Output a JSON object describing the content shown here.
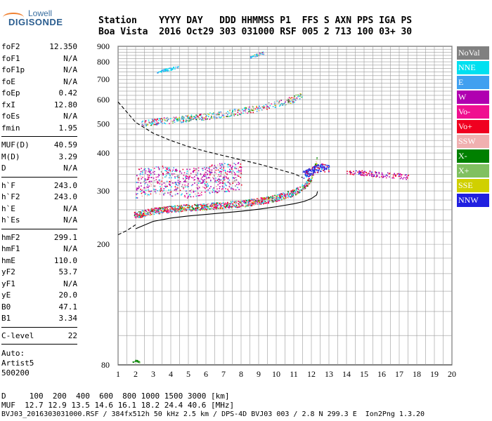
{
  "logo": {
    "top": "Lowell",
    "main": "DIGISONDE"
  },
  "header": {
    "line1": "Station    YYYY DAY   DDD HHMMSS P1  FFS S AXN PPS IGA PS",
    "line2": "Boa Vista  2016 Oct29 303 031000 RSF 005 2 713 100 03+ 30"
  },
  "params": [
    [
      {
        "k": "foF2",
        "v": "12.350"
      },
      {
        "k": "foF1",
        "v": "N/A"
      },
      {
        "k": "foF1p",
        "v": "N/A"
      },
      {
        "k": "foE",
        "v": "N/A"
      },
      {
        "k": "foEp",
        "v": "0.42"
      },
      {
        "k": "fxI",
        "v": "12.80"
      },
      {
        "k": "foEs",
        "v": "N/A"
      },
      {
        "k": "fmin",
        "v": "1.95"
      }
    ],
    [
      {
        "k": "MUF(D)",
        "v": "40.59"
      },
      {
        "k": "M(D)",
        "v": "3.29"
      },
      {
        "k": "D",
        "v": "N/A"
      }
    ],
    [
      {
        "k": "h`F",
        "v": "243.0"
      },
      {
        "k": "h`F2",
        "v": "243.0"
      },
      {
        "k": "h`E",
        "v": "N/A"
      },
      {
        "k": "h`Es",
        "v": "N/A"
      }
    ],
    [
      {
        "k": "hmF2",
        "v": "299.1"
      },
      {
        "k": "hmF1",
        "v": "N/A"
      },
      {
        "k": "hmE",
        "v": "110.0"
      },
      {
        "k": "yF2",
        "v": "53.7"
      },
      {
        "k": "yF1",
        "v": "N/A"
      },
      {
        "k": "yE",
        "v": "20.0"
      },
      {
        "k": "B0",
        "v": "47.1"
      },
      {
        "k": "B1",
        "v": "3.34"
      }
    ],
    [
      {
        "k": "C-level",
        "v": "22"
      }
    ]
  ],
  "auto": {
    "line1": "Auto:",
    "line2": "Artist5",
    "line3": "500200"
  },
  "legend": [
    {
      "label": "NoVal",
      "color": "#808080"
    },
    {
      "label": "NNE",
      "color": "#00e0f0"
    },
    {
      "label": "E",
      "color": "#40a0f0"
    },
    {
      "label": "W",
      "color": "#b000b0"
    },
    {
      "label": "Vo-",
      "color": "#f01090"
    },
    {
      "label": "Vo+",
      "color": "#f00020"
    },
    {
      "label": "SSW",
      "color": "#f0b0b0"
    },
    {
      "label": "X-",
      "color": "#008000"
    },
    {
      "label": "X+",
      "color": "#80c060"
    },
    {
      "label": "SSE",
      "color": "#d0d000"
    },
    {
      "label": "NNW",
      "color": "#2020e0"
    }
  ],
  "bottom": {
    "line1": "D     100  200  400  600  800 1000 1500 3000 [km]",
    "line2": "MUF  12.7 12.9 13.5 14.6 16.1 18.2 24.4 40.6 [MHz]",
    "line3": "BVJ03_2016303031000.RSF / 384fx512h 50 kHz 2.5 km / DPS-4D BVJ03 003 / 2.8 N 299.3 E  Ion2Png 1.3.20"
  },
  "chart_data": {
    "type": "scatter",
    "title": "",
    "xlabel": "",
    "ylabel": "",
    "xlim": [
      1,
      20
    ],
    "ylim": [
      80,
      900
    ],
    "x_ticks": [
      1,
      2,
      3,
      4,
      5,
      6,
      7,
      8,
      9,
      10,
      11,
      12,
      13,
      14,
      15,
      16,
      17,
      18,
      19,
      20
    ],
    "y_ticks": [
      80,
      200,
      300,
      400,
      500,
      600,
      700,
      800,
      900
    ],
    "y_scale": "log",
    "grid": true,
    "series": [
      {
        "name": "profile (hmF2 curve)",
        "style": "solid",
        "x": [
          2.0,
          3,
          4,
          5,
          6,
          7,
          8,
          9,
          10,
          11,
          11.6,
          12.0,
          12.3,
          12.35
        ],
        "y": [
          225,
          238,
          244,
          248,
          251,
          254,
          257,
          261,
          266,
          272,
          277,
          283,
          291,
          299
        ]
      },
      {
        "name": "MUF(3000) curve",
        "style": "dashed",
        "x": [
          1.0,
          2,
          3,
          4,
          5,
          6,
          7,
          8,
          9,
          10,
          11,
          11.5
        ],
        "y": [
          590,
          505,
          465,
          440,
          420,
          405,
          392,
          380,
          368,
          355,
          342,
          332
        ]
      },
      {
        "name": "M(3000) lower curve",
        "style": "dashed",
        "x": [
          1.0,
          1.5,
          2.0
        ],
        "y": [
          215,
          222,
          232
        ]
      }
    ],
    "traces": {
      "F_trace_O": {
        "x": [
          1.9,
          3,
          4,
          5,
          6,
          7,
          8,
          9,
          10,
          11,
          11.5,
          12.0,
          12.3
        ],
        "y": [
          250,
          258,
          262,
          265,
          267,
          270,
          273,
          278,
          285,
          297,
          310,
          330,
          380
        ]
      },
      "F2_second_hop": {
        "x": [
          2.3,
          3,
          4,
          5,
          6,
          7,
          8,
          9,
          10,
          11,
          11.5
        ],
        "y": [
          500,
          508,
          515,
          522,
          530,
          540,
          552,
          565,
          582,
          605,
          630
        ]
      },
      "F2_third_hop": {
        "x": [
          3.2,
          4,
          4.4
        ],
        "y": [
          745,
          760,
          775
        ]
      },
      "F2_fourth_hop": {
        "x": [
          8.5,
          9,
          9.3
        ],
        "y": [
          830,
          850,
          860
        ]
      },
      "Es_spread": {
        "x": [
          2,
          3,
          4,
          5,
          6,
          7,
          8
        ],
        "y": [
          320,
          330,
          325,
          320,
          330,
          335,
          340
        ]
      },
      "NNW_cluster": {
        "x": [
          11.5,
          12.5,
          13.0
        ],
        "y": [
          340,
          360,
          355
        ]
      },
      "oblique_tail": {
        "x": [
          14,
          15,
          16,
          17.5
        ],
        "y": [
          345,
          345,
          340,
          335
        ]
      },
      "low_echo": {
        "x": [
          1.8,
          2.0,
          2.2
        ],
        "y": [
          82,
          83,
          82
        ]
      }
    }
  }
}
